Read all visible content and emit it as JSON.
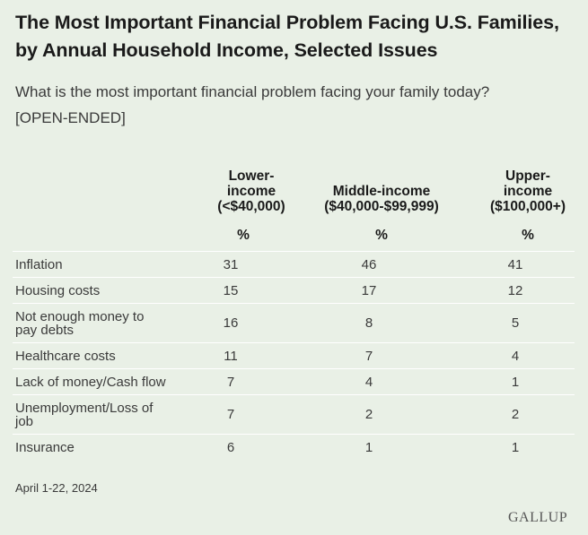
{
  "title_line1": "The Most Important Financial Problem Facing U.S. Families,",
  "title_line2": "by Annual Household Income, Selected Issues",
  "question_line1": "What is the most important financial problem facing your family today?",
  "question_line2": "[OPEN-ENDED]",
  "columns": [
    {
      "lines": [
        "Lower-",
        "income",
        "(<$40,000)"
      ],
      "unit": "%"
    },
    {
      "lines": [
        "Middle-income",
        "($40,000-$99,999)"
      ],
      "unit": "%"
    },
    {
      "lines": [
        "Upper-",
        "income",
        "($100,000+)"
      ],
      "unit": "%"
    }
  ],
  "footnote": "April 1-22, 2024",
  "logo": "GALLUP",
  "chart_data": {
    "type": "table",
    "title": "The Most Important Financial Problem Facing U.S. Families, by Annual Household Income, Selected Issues",
    "categories": [
      "Inflation",
      "Housing costs",
      "Not enough money to pay debts",
      "Healthcare costs",
      "Lack of money/Cash flow",
      "Unemployment/Loss of job",
      "Insurance"
    ],
    "category_lines": [
      [
        "Inflation"
      ],
      [
        "Housing costs"
      ],
      [
        "Not enough money to",
        "pay debts"
      ],
      [
        "Healthcare costs"
      ],
      [
        "Lack of money/Cash flow"
      ],
      [
        "Unemployment/Loss of",
        "job"
      ],
      [
        "Insurance"
      ]
    ],
    "series": [
      {
        "name": "Lower-income (<$40,000)",
        "values": [
          31,
          15,
          16,
          11,
          7,
          7,
          6
        ]
      },
      {
        "name": "Middle-income ($40,000-$99,999)",
        "values": [
          46,
          17,
          8,
          7,
          4,
          2,
          1
        ]
      },
      {
        "name": "Upper-income ($100,000+)",
        "values": [
          41,
          12,
          5,
          4,
          1,
          2,
          1
        ]
      }
    ]
  }
}
